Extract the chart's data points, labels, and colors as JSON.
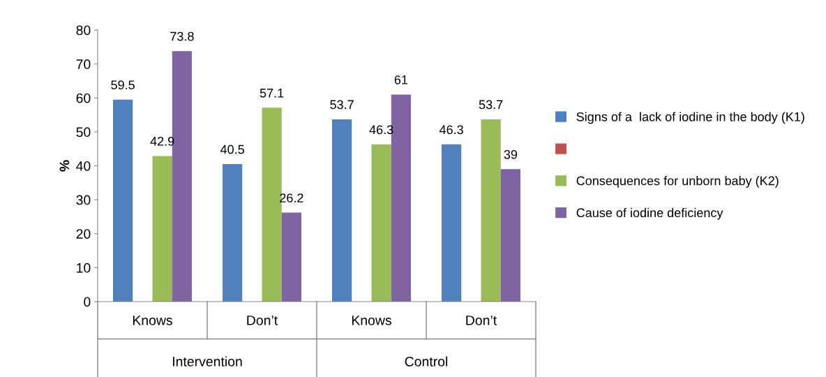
{
  "chart_data": {
    "type": "bar",
    "ylabel": "%",
    "categories": [
      "Knows",
      "Don’t",
      "Knows",
      "Don’t"
    ],
    "annotations": [
      "Intervention",
      "Control"
    ],
    "series": [
      {
        "name": "Signs of a  lack of iodine in the body (K1)",
        "color": "#4f81bd",
        "values": [
          59.5,
          40.5,
          53.7,
          46.3
        ]
      },
      {
        "color": "#c0504d",
        "values": [
          null,
          null,
          null,
          null
        ]
      },
      {
        "name": "Consequences for unborn baby (K2)",
        "color": "#9bbb59",
        "values": [
          42.9,
          57.1,
          46.3,
          53.7
        ]
      },
      {
        "name": "Cause of iodine deficiency",
        "color": "#8064a2",
        "values": [
          73.8,
          26.2,
          61,
          39
        ]
      }
    ],
    "ylim": [
      0,
      80
    ],
    "yticks": [
      0,
      10,
      20,
      30,
      40,
      50,
      60,
      70,
      80
    ],
    "data_labels": true,
    "grid": false,
    "legend": "right"
  }
}
